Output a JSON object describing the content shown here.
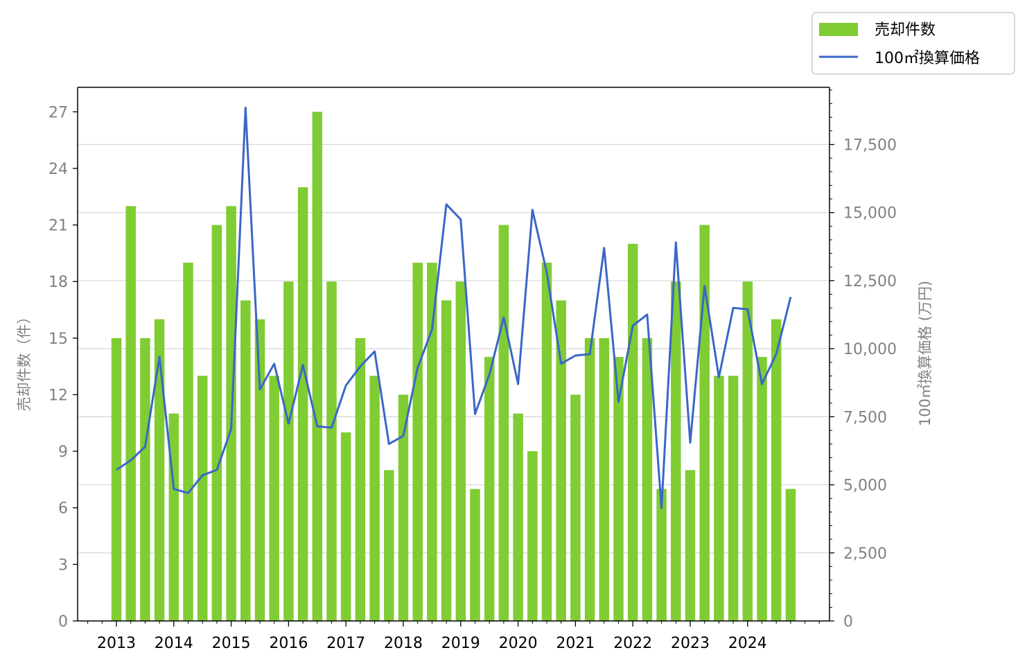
{
  "chart_data": {
    "type": "bar",
    "x_tick_labels": [
      "2013",
      "2014",
      "2015",
      "2016",
      "2017",
      "2018",
      "2019",
      "2020",
      "2021",
      "2022",
      "2023",
      "2024"
    ],
    "quarters_per_year": 4,
    "start_year": 2013,
    "y_left": {
      "label": "売却件数（件）",
      "ticks": [
        0,
        3,
        6,
        9,
        12,
        15,
        18,
        21,
        24,
        27
      ],
      "lim": [
        0,
        28.3
      ]
    },
    "y_right": {
      "label": "100㎡換算価格 (万円)",
      "ticks": [
        0,
        2500,
        5000,
        7500,
        10000,
        12500,
        15000,
        17500
      ],
      "tick_labels": [
        "0",
        "2,500",
        "5,000",
        "7,500",
        "10,000",
        "12,500",
        "15,000",
        "17,500"
      ],
      "lim": [
        0,
        19600
      ]
    },
    "series": [
      {
        "name": "売却件数",
        "kind": "bar",
        "color": "#7fcc33",
        "values": [
          15,
          22,
          15,
          16,
          11,
          19,
          13,
          21,
          22,
          17,
          16,
          13,
          18,
          23,
          27,
          18,
          10,
          15,
          13,
          8,
          12,
          19,
          19,
          17,
          18,
          7,
          14,
          21,
          11,
          9,
          19,
          17,
          12,
          15,
          15,
          14,
          20,
          15,
          7,
          18,
          8,
          21,
          13,
          13,
          18,
          14,
          16,
          7
        ]
      },
      {
        "name": "100㎡換算価格",
        "kind": "line",
        "color": "#3a66c8",
        "values": [
          5550,
          5900,
          6400,
          9700,
          4850,
          4700,
          5350,
          5550,
          7050,
          18850,
          8500,
          9450,
          7250,
          9400,
          7150,
          7100,
          8650,
          9350,
          9900,
          6500,
          6800,
          9300,
          10700,
          15300,
          14750,
          7600,
          9050,
          11150,
          8700,
          15100,
          12800,
          9450,
          9750,
          9800,
          13700,
          8050,
          10850,
          11250,
          4150,
          13900,
          6550,
          12300,
          8950,
          11500,
          11450,
          8700,
          9800,
          11900
        ]
      }
    ],
    "legend_position": "top-right outside",
    "grid": "horizontal (right axis)"
  }
}
